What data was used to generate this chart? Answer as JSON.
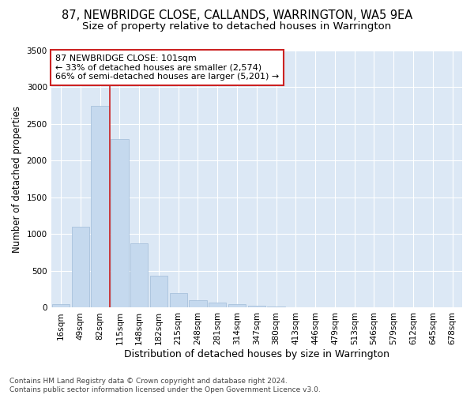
{
  "title": "87, NEWBRIDGE CLOSE, CALLANDS, WARRINGTON, WA5 9EA",
  "subtitle": "Size of property relative to detached houses in Warrington",
  "xlabel": "Distribution of detached houses by size in Warrington",
  "ylabel": "Number of detached properties",
  "categories": [
    "16sqm",
    "49sqm",
    "82sqm",
    "115sqm",
    "148sqm",
    "182sqm",
    "215sqm",
    "248sqm",
    "281sqm",
    "314sqm",
    "347sqm",
    "380sqm",
    "413sqm",
    "446sqm",
    "479sqm",
    "513sqm",
    "546sqm",
    "579sqm",
    "612sqm",
    "645sqm",
    "678sqm"
  ],
  "values": [
    50,
    1105,
    2750,
    2295,
    880,
    430,
    200,
    105,
    65,
    45,
    22,
    14,
    8,
    5,
    3,
    2,
    2,
    1,
    1,
    1,
    0
  ],
  "bar_color": "#c5d9ee",
  "bar_edge_color": "#a0bcd8",
  "vline_color": "#cc2222",
  "annotation_text": "87 NEWBRIDGE CLOSE: 101sqm\n← 33% of detached houses are smaller (2,574)\n66% of semi-detached houses are larger (5,201) →",
  "annotation_box_color": "#ffffff",
  "annotation_box_edge": "#cc2222",
  "ylim": [
    0,
    3500
  ],
  "yticks": [
    0,
    500,
    1000,
    1500,
    2000,
    2500,
    3000,
    3500
  ],
  "bg_color": "#ffffff",
  "plot_bg_color": "#dce8f5",
  "grid_color": "#ffffff",
  "footnote": "Contains HM Land Registry data © Crown copyright and database right 2024.\nContains public sector information licensed under the Open Government Licence v3.0.",
  "title_fontsize": 10.5,
  "subtitle_fontsize": 9.5,
  "xlabel_fontsize": 9,
  "ylabel_fontsize": 8.5,
  "tick_fontsize": 7.5,
  "annot_fontsize": 8,
  "footnote_fontsize": 6.5
}
